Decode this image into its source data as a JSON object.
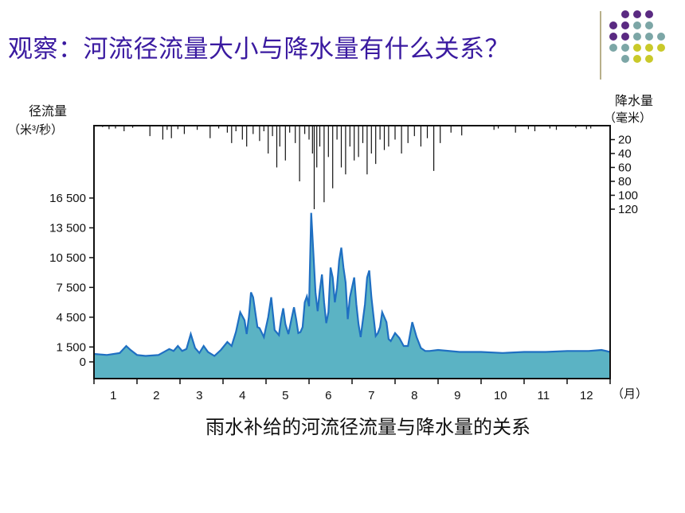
{
  "slide": {
    "title": "观察：河流径流量大小与降水量有什么关系？"
  },
  "decor": {
    "dot_colors": [
      "#5a2a82",
      "#7ca6a6",
      "#c9c92a"
    ]
  },
  "chart_data": {
    "type": "area",
    "caption": "雨水补给的河流径流量与降水量的关系",
    "left_axis": {
      "label_line1": "径流量",
      "label_line2": "（米³/秒）",
      "ticks": [
        0,
        1500,
        4500,
        7500,
        10500,
        13500,
        16500
      ],
      "tick_labels": [
        "0",
        "1 500",
        "4 500",
        "7 500",
        "10 500",
        "13 500",
        "16 500"
      ],
      "range": [
        -1500,
        16500
      ]
    },
    "right_axis": {
      "label_line1": "降水量",
      "label_line2": "（毫米）",
      "ticks": [
        20,
        40,
        60,
        80,
        100,
        120
      ],
      "tick_labels": [
        "20",
        "40",
        "60",
        "80",
        "100",
        "120"
      ],
      "range": [
        0,
        130
      ],
      "inverted": true
    },
    "x_axis": {
      "range": [
        0,
        12
      ],
      "month_labels": [
        "1",
        "2",
        "3",
        "4",
        "5",
        "6",
        "7",
        "8",
        "9",
        "10",
        "11",
        "12"
      ],
      "unit_label": "（月）"
    },
    "colors": {
      "area_fill": "#5bb3c4",
      "area_line": "#1f6fc2",
      "frame": "#111111"
    },
    "series": [
      {
        "type": "area",
        "x": [
          0,
          0.3,
          0.6,
          0.75,
          0.85,
          1.0,
          1.2,
          1.5,
          1.75,
          1.85,
          1.95,
          2.05,
          2.15,
          2.25,
          2.35,
          2.45,
          2.55,
          2.65,
          2.8,
          2.95,
          3.1,
          3.2,
          3.3,
          3.4,
          3.5,
          3.55,
          3.6,
          3.65,
          3.7,
          3.8,
          3.85,
          3.95,
          4.05,
          4.12,
          4.2,
          4.3,
          4.35,
          4.4,
          4.45,
          4.52,
          4.6,
          4.65,
          4.7,
          4.75,
          4.8,
          4.85,
          4.9,
          4.95,
          5.0,
          5.05,
          5.1,
          5.15,
          5.2,
          5.25,
          5.3,
          5.35,
          5.4,
          5.45,
          5.5,
          5.55,
          5.6,
          5.65,
          5.7,
          5.75,
          5.8,
          5.85,
          5.9,
          5.95,
          6.05,
          6.1,
          6.15,
          6.2,
          6.3,
          6.35,
          6.4,
          6.45,
          6.55,
          6.6,
          6.65,
          6.7,
          6.8,
          6.85,
          6.9,
          7.0,
          7.1,
          7.2,
          7.3,
          7.4,
          7.5,
          7.6,
          7.7,
          7.8,
          8.0,
          8.5,
          9.0,
          9.5,
          10.0,
          10.5,
          11.0,
          11.5,
          11.8,
          12.0
        ],
        "y": [
          800,
          700,
          900,
          1600,
          1200,
          700,
          600,
          700,
          1300,
          1100,
          1600,
          1100,
          1300,
          2800,
          1400,
          900,
          1600,
          1000,
          600,
          1200,
          2000,
          1600,
          3000,
          5000,
          4200,
          2800,
          4500,
          7000,
          6500,
          3500,
          3400,
          2500,
          4500,
          6500,
          3200,
          2700,
          4300,
          5400,
          3800,
          2800,
          4500,
          5500,
          4300,
          2900,
          3000,
          3500,
          6000,
          6600,
          5600,
          15000,
          11000,
          7000,
          5100,
          7200,
          8800,
          6000,
          3900,
          5000,
          9500,
          8500,
          6000,
          7500,
          10200,
          11500,
          9500,
          8000,
          4300,
          6500,
          8500,
          5800,
          3800,
          2500,
          5800,
          8500,
          9200,
          6500,
          2600,
          2900,
          3500,
          5000,
          4000,
          2300,
          2100,
          2900,
          2400,
          1600,
          1600,
          4000,
          2500,
          1400,
          1100,
          1100,
          1200,
          1000,
          1000,
          900,
          1000,
          1000,
          1100,
          1100,
          1200,
          1000
        ]
      },
      {
        "type": "bar",
        "x": [
          0.0,
          0.2,
          0.35,
          0.5,
          0.7,
          0.9,
          1.3,
          1.6,
          1.7,
          1.8,
          1.95,
          2.1,
          2.4,
          2.7,
          2.9,
          3.1,
          3.2,
          3.3,
          3.45,
          3.55,
          3.7,
          3.85,
          3.95,
          4.05,
          4.15,
          4.25,
          4.32,
          4.45,
          4.55,
          4.68,
          4.78,
          4.9,
          5.0,
          5.08,
          5.12,
          5.18,
          5.25,
          5.35,
          5.45,
          5.55,
          5.65,
          5.75,
          5.85,
          5.95,
          6.05,
          6.15,
          6.25,
          6.35,
          6.45,
          6.55,
          6.65,
          6.75,
          6.85,
          7.0,
          7.15,
          7.3,
          7.45,
          7.6,
          7.75,
          7.9,
          8.05,
          8.3,
          8.55,
          9.3,
          9.4,
          9.8,
          10.1,
          10.25,
          10.6,
          10.75,
          11.2,
          11.45,
          11.55
        ],
        "y": [
          3,
          2,
          5,
          4,
          8,
          3,
          15,
          20,
          6,
          18,
          5,
          12,
          6,
          18,
          4,
          10,
          25,
          8,
          20,
          30,
          12,
          22,
          8,
          40,
          15,
          60,
          30,
          50,
          10,
          25,
          80,
          12,
          20,
          40,
          120,
          60,
          30,
          110,
          45,
          90,
          20,
          60,
          70,
          30,
          50,
          45,
          25,
          70,
          40,
          55,
          20,
          35,
          30,
          20,
          40,
          25,
          15,
          30,
          18,
          65,
          25,
          10,
          14,
          6,
          4,
          10,
          5,
          8,
          4,
          6,
          3,
          5,
          4
        ]
      }
    ]
  }
}
